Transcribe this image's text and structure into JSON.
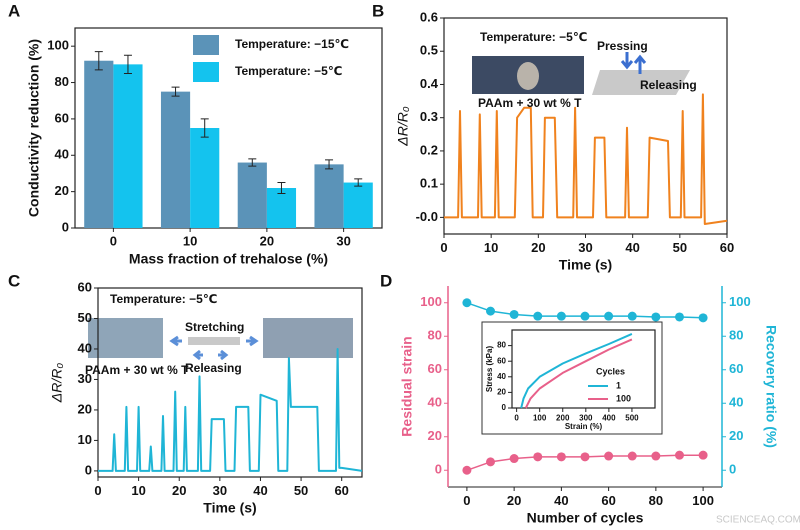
{
  "chart_data": [
    {
      "type": "bar",
      "panel": "A",
      "categories": [
        "0",
        "10",
        "20",
        "30"
      ],
      "series": [
        {
          "name": "Temperature: −15℃",
          "color": "#5b93b8",
          "values": [
            92,
            75,
            36,
            35
          ],
          "errors": [
            5,
            2.5,
            2,
            2.5
          ]
        },
        {
          "name": "Temperature: −5℃",
          "color": "#14c3ee",
          "values": [
            90,
            55,
            22,
            25
          ],
          "errors": [
            5,
            5,
            3,
            2
          ]
        }
      ],
      "ylim": [
        0,
        110
      ],
      "yticks": [
        0,
        20,
        40,
        60,
        80,
        100
      ],
      "x_label": "Mass fraction of trehalose (%)",
      "y_label": "Conductivity reduction (%)"
    },
    {
      "type": "line",
      "panel": "B",
      "x": [
        0,
        3,
        3.4,
        3.8,
        7.2,
        7.6,
        8,
        10.8,
        11.2,
        11.6,
        15,
        15.5,
        17,
        18.4,
        18.8,
        21,
        21.4,
        23.5,
        24,
        27.4,
        27.8,
        28.2,
        31.6,
        32,
        34,
        34.4,
        38.4,
        38.8,
        39.2,
        43.2,
        43.6,
        47.5,
        47.9,
        50.2,
        50.6,
        51,
        54.5,
        54.9,
        55.3,
        60
      ],
      "series": [
        {
          "color": "#f0821e",
          "values": [
            0,
            0,
            0.32,
            0,
            0,
            0.31,
            0,
            0,
            0.32,
            0,
            0,
            0.3,
            0.33,
            0.33,
            0,
            0,
            0.3,
            0.3,
            0,
            0,
            0.33,
            0,
            0,
            0.24,
            0.24,
            0,
            0,
            0.27,
            0,
            0,
            0.24,
            0.23,
            0,
            0,
            0.32,
            0,
            0,
            0.37,
            -0.02,
            -0.01
          ]
        }
      ],
      "xlim": [
        0,
        60
      ],
      "xticks": [
        0,
        10,
        20,
        30,
        40,
        50,
        60
      ],
      "ylim": [
        -0.05,
        0.6
      ],
      "yticks": [
        {
          "value": 0,
          "label": "-0.0"
        },
        0.1,
        0.2,
        0.3,
        0.4,
        0.5,
        0.6
      ],
      "x_label": "Time (s)",
      "y_label": "ΔR/R₀",
      "annotations": [
        "Temperature: −5℃",
        "Pressing",
        "Releasing",
        "PAAm + 30 wt % T"
      ]
    },
    {
      "type": "line",
      "panel": "C",
      "x": [
        0,
        3.6,
        4,
        4.4,
        6.6,
        7,
        7.4,
        9.6,
        10,
        10.4,
        12.6,
        13,
        13.4,
        15.6,
        16,
        16.4,
        18.6,
        19,
        19.4,
        21.1,
        21.5,
        21.9,
        24.6,
        25,
        25.4,
        27.6,
        28,
        31,
        31.4,
        33.6,
        34,
        37,
        37.4,
        39.6,
        40,
        44,
        44.4,
        46.6,
        47,
        47.5,
        54,
        54.4,
        58.6,
        59,
        59.4,
        60,
        65
      ],
      "series": [
        {
          "color": "#1fb5d6",
          "values": [
            0,
            0,
            12,
            0,
            0,
            21,
            0,
            0,
            21,
            0,
            0,
            8,
            0,
            0,
            18,
            0,
            0,
            26,
            0,
            0,
            21,
            0,
            0,
            31,
            0,
            0,
            17,
            17,
            0,
            0,
            21,
            21,
            0,
            0,
            25,
            23,
            0,
            0,
            37,
            21,
            21,
            0,
            0,
            40,
            1,
            1,
            0
          ]
        }
      ],
      "xlim": [
        0,
        65
      ],
      "xticks": [
        0,
        10,
        20,
        30,
        40,
        50,
        60
      ],
      "ylim": [
        -2,
        60
      ],
      "yticks": [
        0,
        10,
        20,
        30,
        40,
        50,
        60
      ],
      "x_label": "Time (s)",
      "y_label": "ΔR/R₀",
      "annotations": [
        "Temperature: −5℃",
        "Stretching",
        "Releasing",
        "PAAm + 30 wt % T"
      ]
    },
    {
      "type": "dual",
      "panel": "D",
      "x": [
        0,
        10,
        20,
        30,
        40,
        50,
        60,
        70,
        80,
        90,
        100
      ],
      "series": [
        {
          "color": "#e8608a",
          "values": [
            0,
            5,
            7,
            8,
            8,
            8,
            8.5,
            8.5,
            8.5,
            9,
            9
          ]
        },
        {
          "color": "#1fb5d6",
          "axis": "y2",
          "values": [
            100,
            95,
            93,
            92,
            92,
            92,
            92,
            92,
            91.5,
            91.5,
            91
          ]
        }
      ],
      "xlim": [
        -8,
        108
      ],
      "xticks": [
        0,
        20,
        40,
        60,
        80,
        100
      ],
      "ylim": [
        -10,
        110
      ],
      "yticks": [
        0,
        20,
        40,
        60,
        80,
        100
      ],
      "y2lim": [
        -10,
        110
      ],
      "y2ticks": [
        0,
        20,
        40,
        60,
        80,
        100
      ],
      "x_label": "Number of cycles",
      "y_label": "Residual strain",
      "y2_label": "Recovery ratio (%)"
    },
    {
      "type": "inset",
      "series": [
        {
          "name": "1",
          "color": "#1fb5d6",
          "x": [
            20,
            30,
            50,
            100,
            200,
            300,
            400,
            500
          ],
          "values": [
            0,
            12,
            25,
            40,
            57,
            70,
            82,
            95
          ]
        },
        {
          "name": "100",
          "color": "#e8608a",
          "x": [
            40,
            60,
            100,
            200,
            300,
            400,
            500
          ],
          "values": [
            0,
            12,
            25,
            45,
            60,
            75,
            88
          ]
        }
      ],
      "legend_title": "Cycles",
      "xlim": [
        -20,
        600
      ],
      "xticks": [
        0,
        100,
        200,
        300,
        400,
        500
      ],
      "ylim": [
        0,
        100
      ],
      "yticks": [
        0,
        20,
        40,
        60,
        80
      ],
      "x_label": "Strain (%)",
      "y_label": "Stress (kPa)"
    }
  ],
  "watermark": "SCIENCEAQ.COM"
}
